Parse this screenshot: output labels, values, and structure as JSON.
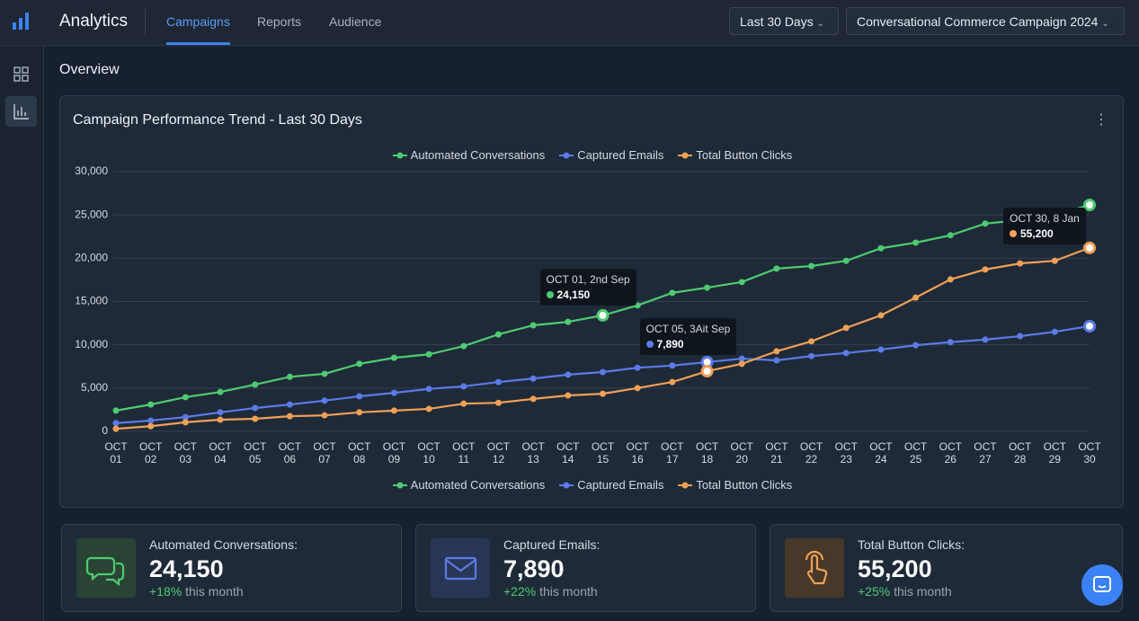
{
  "header": {
    "title": "Analytics",
    "tabs": [
      "Campaigns",
      "Reports",
      "Audience"
    ],
    "date_range": "Last 30 Days",
    "campaign": "Conversational Commerce Campaign 2024"
  },
  "section_title": "Overview",
  "chart_data": {
    "type": "line",
    "title": "Campaign Performance Trend - Last 30 Days",
    "categories": [
      "OCT 01",
      "OCT 02",
      "OCT 03",
      "OCT 04",
      "OCT 05",
      "OCT 06",
      "OCT 07",
      "OCT 08",
      "OCT 09",
      "OCT 10",
      "OCT 11",
      "OCT 12",
      "OCT 13",
      "OCT 14",
      "OCT 15",
      "OCT 16",
      "OCT 17",
      "OCT 18",
      "OCT 20",
      "OCT 21",
      "OCT 22",
      "OCT 23",
      "OCT 24",
      "OCT 25",
      "OCT 26",
      "OCT 27",
      "OCT 28",
      "OCT 29",
      "OCT 30"
    ],
    "series": [
      {
        "name": "Automated Conversations",
        "color": "#4ecb71",
        "values": [
          2400,
          3100,
          3950,
          4550,
          5400,
          6300,
          6650,
          7800,
          8500,
          8900,
          9850,
          11200,
          12250,
          12650,
          13400,
          14550,
          16000,
          16600,
          17250,
          18800,
          19100,
          19700,
          21150,
          21800,
          22650,
          24000,
          24400,
          25000,
          26150
        ]
      },
      {
        "name": "Captured Emails",
        "color": "#5b7be8",
        "values": [
          950,
          1250,
          1650,
          2200,
          2700,
          3100,
          3550,
          4050,
          4450,
          4900,
          5200,
          5700,
          6100,
          6550,
          6850,
          7350,
          7600,
          8000,
          8400,
          8200,
          8700,
          9050,
          9450,
          9950,
          10300,
          10600,
          11000,
          11500,
          12150
        ]
      },
      {
        "name": "Total Button Clicks",
        "color": "#f0a056",
        "values": [
          300,
          600,
          1050,
          1350,
          1450,
          1750,
          1850,
          2200,
          2400,
          2600,
          3200,
          3300,
          3750,
          4150,
          4350,
          5000,
          5700,
          6950,
          7800,
          9250,
          10400,
          11950,
          13400,
          15450,
          17550,
          18700,
          19400,
          19700,
          21200
        ]
      }
    ],
    "ylim": [
      0,
      30000
    ],
    "yticks": [
      0,
      {
        "value": 5000,
        "label": "5,000"
      },
      {
        "value": 10000,
        "label": "10,000"
      },
      {
        "value": 15000,
        "label": "15,000"
      },
      {
        "value": 20000,
        "label": "20,000"
      },
      {
        "value": 25000,
        "label": "25,000"
      },
      {
        "value": 30000,
        "label": "30,000"
      }
    ],
    "grid": true,
    "annotations": [
      {
        "title": "OCT 01, 2nd Sep",
        "value": "24,150"
      },
      {
        "title": "OCT 05, 3Ait Sep",
        "value": "7,890"
      },
      {
        "title": "OCT 30, 8 Jan",
        "value": "55,200"
      }
    ]
  },
  "stats": [
    {
      "label": "Automated Conversations:",
      "value": "24,150",
      "change": "+18%",
      "period": "this month"
    },
    {
      "label": "Captured Emails:",
      "value": "7,890",
      "change": "+22%",
      "period": "this month"
    },
    {
      "label": "Total Button Clicks:",
      "value": "55,200",
      "change": "+25%",
      "period": "this month"
    }
  ]
}
